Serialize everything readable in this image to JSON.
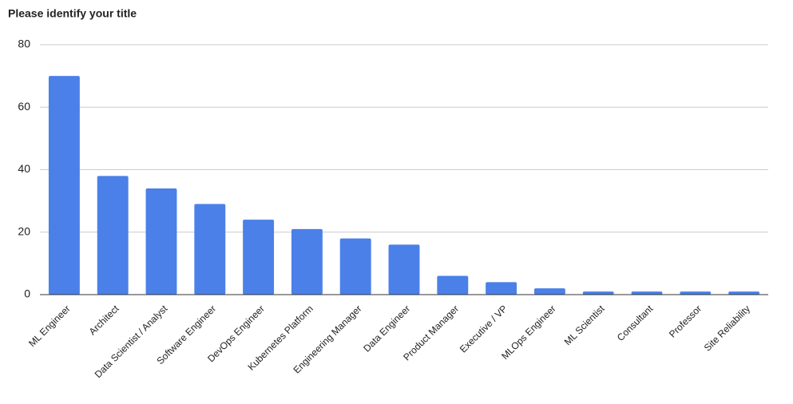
{
  "chart_data": {
    "type": "bar",
    "title": "Please identify your title",
    "categories": [
      "ML Engineer",
      "Architect",
      "Data Scientist / Analyst",
      "Software Engineer",
      "DevOps Engineer",
      "Kubernetes Platform",
      "Engineering Manager",
      "Data Engineer",
      "Product Manager",
      "Executive / VP",
      "MLOps Engineer",
      "ML Scientist",
      "Consultant",
      "Professor",
      "Site Reliability"
    ],
    "values": [
      70,
      38,
      34,
      29,
      24,
      21,
      18,
      16,
      6,
      4,
      2,
      1,
      1,
      1,
      1
    ],
    "color": "#4a80e8",
    "ylim": [
      0,
      80
    ],
    "yticks": [
      0,
      20,
      40,
      60,
      80
    ],
    "grid": true
  }
}
